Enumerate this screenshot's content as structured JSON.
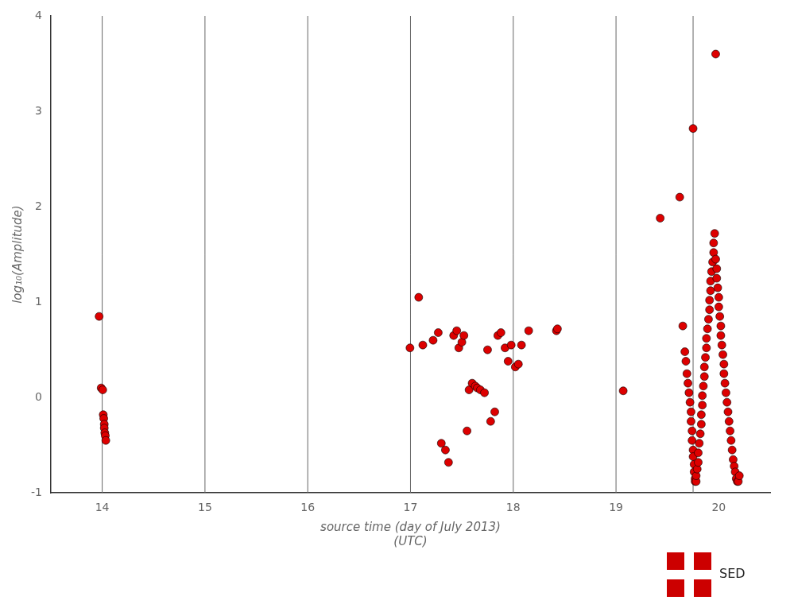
{
  "chart_data": {
    "type": "scatter",
    "xlabel": "source time (day of July 2013)\n(UTC)",
    "ylabel": "log₁₀(Amplitude)",
    "xlim": [
      13.5,
      20.5
    ],
    "ylim": [
      -1.0,
      4.0
    ],
    "xticks": [
      14,
      15,
      16,
      17,
      18,
      19,
      20
    ],
    "yticks": [
      -1,
      0,
      1,
      2,
      3,
      4
    ],
    "vlines": [
      14.0,
      15.0,
      16.0,
      17.0,
      18.0,
      19.0,
      19.75
    ],
    "color": "#dd0000",
    "grid": false,
    "annotation": "SED",
    "x": [
      13.97,
      13.99,
      14.005,
      14.01,
      14.015,
      14.02,
      14.02,
      14.025,
      14.03,
      14.035,
      16.995,
      17.08,
      17.12,
      17.22,
      17.27,
      17.3,
      17.34,
      17.37,
      17.42,
      17.45,
      17.47,
      17.5,
      17.52,
      17.55,
      17.57,
      17.6,
      17.63,
      17.65,
      17.68,
      17.72,
      17.75,
      17.78,
      17.82,
      17.85,
      17.88,
      17.92,
      17.95,
      17.98,
      18.02,
      18.05,
      18.08,
      18.15,
      18.42,
      18.43,
      19.07,
      19.43,
      19.62,
      19.65,
      19.67,
      19.68,
      19.69,
      19.7,
      19.71,
      19.72,
      19.73,
      19.73,
      19.74,
      19.74,
      19.75,
      19.75,
      19.75,
      19.76,
      19.76,
      19.77,
      19.77,
      19.78,
      19.78,
      19.79,
      19.8,
      19.8,
      19.81,
      19.82,
      19.83,
      19.83,
      19.84,
      19.84,
      19.85,
      19.86,
      19.86,
      19.87,
      19.88,
      19.88,
      19.89,
      19.9,
      19.91,
      19.91,
      19.92,
      19.92,
      19.93,
      19.94,
      19.95,
      19.95,
      19.96,
      19.97,
      19.97,
      19.98,
      19.98,
      19.99,
      20.0,
      20.0,
      20.01,
      20.02,
      20.02,
      20.03,
      20.04,
      20.05,
      20.05,
      20.06,
      20.07,
      20.08,
      20.09,
      20.1,
      20.11,
      20.12,
      20.13,
      20.14,
      20.15,
      20.16,
      20.17,
      20.18,
      20.19,
      20.2
    ],
    "values": [
      0.85,
      0.1,
      0.08,
      -0.18,
      -0.22,
      -0.28,
      -0.32,
      -0.37,
      -0.4,
      -0.45,
      0.52,
      1.05,
      0.55,
      0.6,
      0.68,
      -0.48,
      -0.55,
      -0.68,
      0.65,
      0.7,
      0.52,
      0.58,
      0.65,
      -0.35,
      0.08,
      0.15,
      0.12,
      0.1,
      0.08,
      0.05,
      0.5,
      -0.25,
      -0.15,
      0.65,
      0.68,
      0.52,
      0.38,
      0.55,
      0.32,
      0.35,
      0.55,
      0.7,
      0.7,
      0.72,
      0.07,
      1.88,
      2.1,
      0.75,
      0.48,
      0.38,
      0.25,
      0.15,
      0.05,
      -0.05,
      -0.15,
      -0.25,
      -0.35,
      -0.45,
      2.82,
      -0.55,
      -0.62,
      -0.7,
      -0.78,
      -0.85,
      -0.88,
      -0.88,
      -0.82,
      -0.75,
      -0.68,
      -0.58,
      -0.48,
      -0.38,
      -0.28,
      -0.18,
      -0.08,
      0.02,
      0.12,
      0.22,
      0.32,
      0.42,
      0.52,
      0.62,
      0.72,
      0.82,
      0.92,
      1.02,
      1.12,
      1.22,
      1.32,
      1.42,
      1.52,
      1.62,
      1.72,
      3.6,
      1.45,
      1.35,
      1.25,
      1.15,
      1.05,
      0.95,
      0.85,
      0.75,
      0.65,
      0.55,
      0.45,
      0.35,
      0.25,
      0.15,
      0.05,
      -0.05,
      -0.15,
      -0.25,
      -0.35,
      -0.45,
      -0.55,
      -0.65,
      -0.72,
      -0.78,
      -0.85,
      -0.88,
      -0.88,
      -0.82
    ]
  }
}
